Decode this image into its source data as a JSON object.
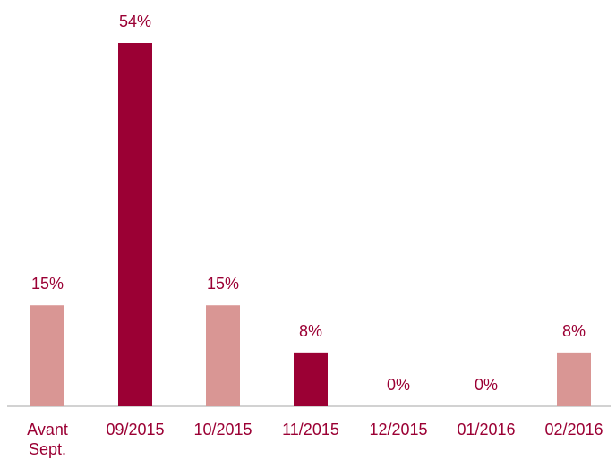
{
  "chart_data": {
    "type": "bar",
    "categories": [
      "Avant Sept.",
      "09/2015",
      "10/2015",
      "11/2015",
      "12/2015",
      "01/2016",
      "02/2016"
    ],
    "values": [
      15,
      54,
      15,
      8,
      0,
      0,
      8
    ],
    "value_labels": [
      "15%",
      "54%",
      "15%",
      "8%",
      "0%",
      "0%",
      "8%"
    ],
    "colors": [
      "#d99694",
      "#9b0034",
      "#d99694",
      "#9b0034",
      "#d99694",
      "#d99694",
      "#d99694"
    ]
  }
}
